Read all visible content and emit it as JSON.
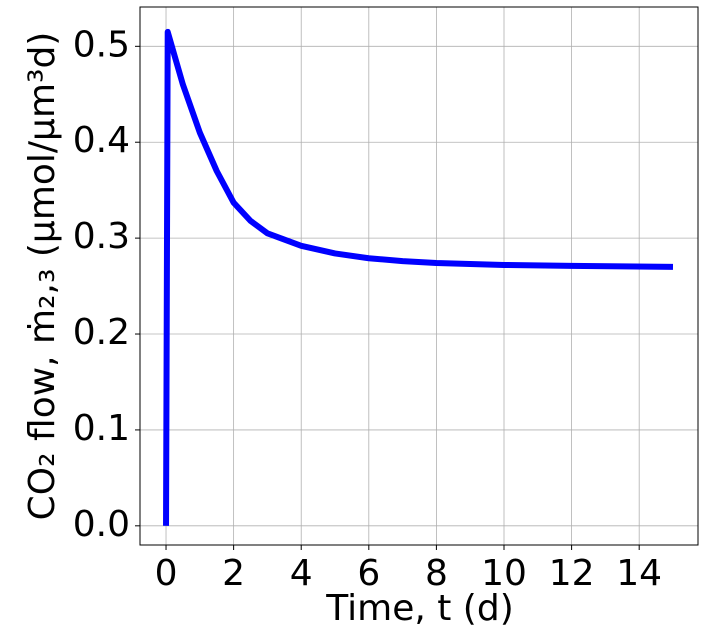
{
  "chart_data": {
    "type": "line",
    "xlabel": "Time, t (d)",
    "ylabel": "CO₂ flow, ṁ₂,₃ (μmol/μm³d)",
    "x": [
      0,
      0.05,
      0.5,
      1,
      1.5,
      2,
      2.5,
      3,
      4,
      5,
      6,
      7,
      8,
      10,
      12,
      15
    ],
    "series": [
      {
        "name": "CO2 flow",
        "color": "#0000ff",
        "values": [
          0,
          0.515,
          0.46,
          0.41,
          0.37,
          0.337,
          0.318,
          0.305,
          0.292,
          0.284,
          0.279,
          0.276,
          0.274,
          0.272,
          0.271,
          0.27
        ]
      }
    ],
    "xlim": [
      -0.77,
      15.74
    ],
    "ylim": [
      -0.02,
      0.541
    ],
    "xticks": [
      0,
      2,
      4,
      6,
      8,
      10,
      12,
      14
    ],
    "yticks": [
      {
        "value": 0,
        "label": "0.0"
      },
      0.1,
      0.2,
      0.3,
      0.4,
      0.5
    ],
    "grid": true
  }
}
